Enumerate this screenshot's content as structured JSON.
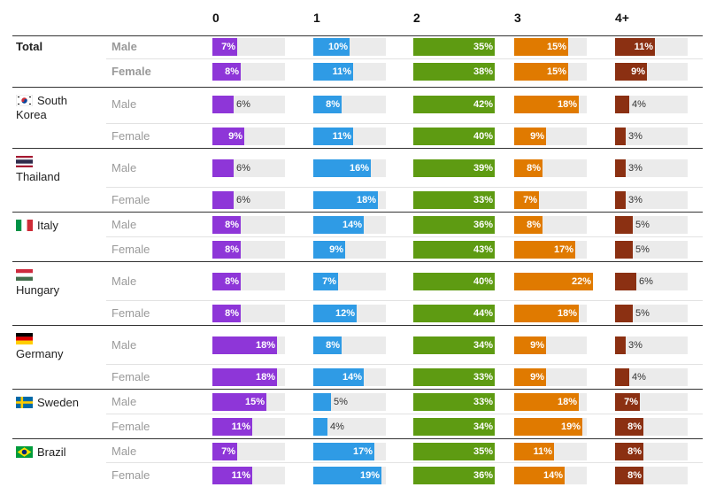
{
  "chart_data": {
    "type": "table",
    "columns": [
      "0",
      "1",
      "2",
      "3",
      "4+"
    ],
    "colors": [
      "#8e36d8",
      "#2f9be5",
      "#5e9b12",
      "#e07a00",
      "#8b3012"
    ],
    "countries": [
      {
        "name": "Total",
        "flag": "",
        "rows": [
          {
            "gender": "Male",
            "values": [
              7,
              10,
              35,
              15,
              11
            ]
          },
          {
            "gender": "Female",
            "values": [
              8,
              11,
              38,
              15,
              9
            ]
          }
        ]
      },
      {
        "name": "South Korea",
        "flag": "south-korea",
        "rows": [
          {
            "gender": "Male",
            "values": [
              6,
              8,
              42,
              18,
              4
            ]
          },
          {
            "gender": "Female",
            "values": [
              9,
              11,
              40,
              9,
              3
            ]
          }
        ]
      },
      {
        "name": "Thailand",
        "flag": "thailand",
        "rows": [
          {
            "gender": "Male",
            "values": [
              6,
              16,
              39,
              8,
              3
            ]
          },
          {
            "gender": "Female",
            "values": [
              6,
              18,
              33,
              7,
              3
            ]
          }
        ]
      },
      {
        "name": "Italy",
        "flag": "italy",
        "rows": [
          {
            "gender": "Male",
            "values": [
              8,
              14,
              36,
              8,
              5
            ]
          },
          {
            "gender": "Female",
            "values": [
              8,
              9,
              43,
              17,
              5
            ]
          }
        ]
      },
      {
        "name": "Hungary",
        "flag": "hungary",
        "rows": [
          {
            "gender": "Male",
            "values": [
              8,
              7,
              40,
              22,
              6
            ]
          },
          {
            "gender": "Female",
            "values": [
              8,
              12,
              44,
              18,
              5
            ]
          }
        ]
      },
      {
        "name": "Germany",
        "flag": "germany",
        "rows": [
          {
            "gender": "Male",
            "values": [
              18,
              8,
              34,
              9,
              3
            ]
          },
          {
            "gender": "Female",
            "values": [
              18,
              14,
              33,
              9,
              4
            ]
          }
        ]
      },
      {
        "name": "Sweden",
        "flag": "sweden",
        "rows": [
          {
            "gender": "Male",
            "values": [
              15,
              5,
              33,
              18,
              7
            ]
          },
          {
            "gender": "Female",
            "values": [
              11,
              4,
              34,
              19,
              8
            ]
          }
        ]
      },
      {
        "name": "Brazil",
        "flag": "brazil",
        "rows": [
          {
            "gender": "Male",
            "values": [
              7,
              17,
              35,
              11,
              8
            ]
          },
          {
            "gender": "Female",
            "values": [
              11,
              19,
              36,
              14,
              8
            ]
          }
        ]
      }
    ]
  }
}
